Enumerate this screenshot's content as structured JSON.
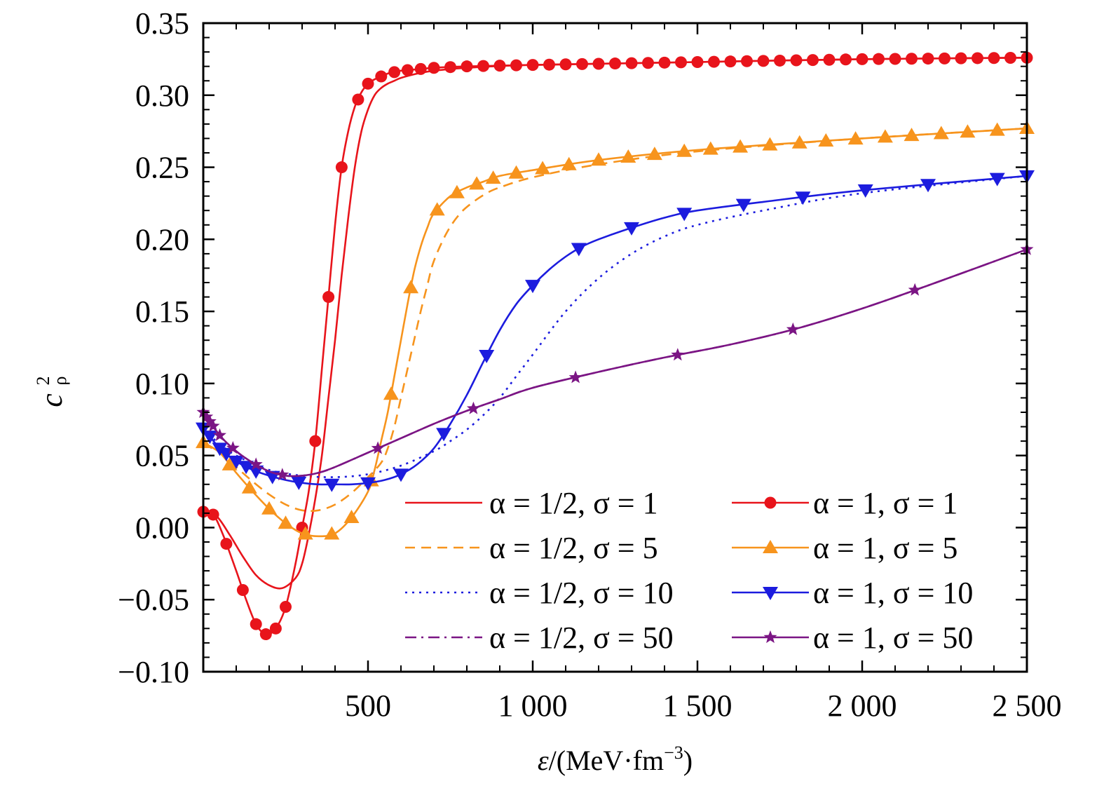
{
  "chart_data": {
    "type": "line",
    "title": "",
    "xlabel": {
      "prefix": "ε",
      "main": "/(MeV·fm",
      "sup": "−3",
      "suffix": ")"
    },
    "ylabel": {
      "main": "c",
      "sup": "2",
      "sub": "ρ"
    },
    "xlim": [
      0,
      2500
    ],
    "ylim": [
      -0.1,
      0.35
    ],
    "x_ticks": [
      {
        "value": 500,
        "label": "500"
      },
      {
        "value": 1000,
        "label": "1 000"
      },
      {
        "value": 1500,
        "label": "1 500"
      },
      {
        "value": 2000,
        "label": "2 000"
      },
      {
        "value": 2500,
        "label": "2 500"
      }
    ],
    "y_ticks": [
      {
        "value": -0.1,
        "label": "−0.10"
      },
      {
        "value": -0.05,
        "label": "−0.05"
      },
      {
        "value": 0.0,
        "label": "0.00"
      },
      {
        "value": 0.05,
        "label": "0.05"
      },
      {
        "value": 0.1,
        "label": "0.10"
      },
      {
        "value": 0.15,
        "label": "0.15"
      },
      {
        "value": 0.2,
        "label": "0.20"
      },
      {
        "value": 0.25,
        "label": "0.25"
      },
      {
        "value": 0.3,
        "label": "0.30"
      },
      {
        "value": 0.35,
        "label": "0.35"
      }
    ],
    "grid": false,
    "legend_position": "bottom-right",
    "series": [
      {
        "name": "α = 1/2, σ = 1",
        "color": "#e8141b",
        "dash": "solid",
        "marker": "none",
        "x": [
          0,
          40,
          80,
          120,
          160,
          200,
          240,
          280,
          300,
          320,
          340,
          360,
          380,
          400,
          420,
          440,
          460,
          480,
          500,
          520,
          540,
          560,
          580,
          600,
          650,
          700,
          800,
          1000,
          1500,
          2000,
          2500
        ],
        "y": [
          0.011,
          0.008,
          -0.005,
          -0.02,
          -0.033,
          -0.04,
          -0.042,
          -0.035,
          -0.025,
          -0.005,
          0.02,
          0.05,
          0.09,
          0.13,
          0.175,
          0.215,
          0.25,
          0.275,
          0.29,
          0.3,
          0.305,
          0.308,
          0.31,
          0.312,
          0.315,
          0.317,
          0.319,
          0.321,
          0.323,
          0.325,
          0.326
        ]
      },
      {
        "name": "α = 1/2, σ = 5",
        "color": "#f7941d",
        "dash": "dashed",
        "marker": "none",
        "x": [
          0,
          50,
          100,
          150,
          200,
          250,
          300,
          350,
          400,
          450,
          500,
          540,
          560,
          580,
          600,
          620,
          640,
          660,
          680,
          700,
          740,
          780,
          820,
          860,
          900,
          1000,
          1200,
          1500,
          2000,
          2500
        ],
        "y": [
          0.058,
          0.052,
          0.042,
          0.032,
          0.023,
          0.016,
          0.012,
          0.012,
          0.016,
          0.024,
          0.035,
          0.045,
          0.055,
          0.07,
          0.09,
          0.11,
          0.13,
          0.15,
          0.168,
          0.185,
          0.205,
          0.218,
          0.226,
          0.232,
          0.236,
          0.243,
          0.252,
          0.261,
          0.27,
          0.277
        ]
      },
      {
        "name": "α = 1/2, σ = 10",
        "color": "#1c1cde",
        "dash": "dotted",
        "marker": "none",
        "x": [
          0,
          50,
          100,
          200,
          300,
          400,
          500,
          600,
          700,
          750,
          800,
          850,
          900,
          950,
          1000,
          1100,
          1200,
          1300,
          1400,
          1500,
          1700,
          2000,
          2500
        ],
        "y": [
          0.068,
          0.058,
          0.05,
          0.04,
          0.036,
          0.035,
          0.037,
          0.043,
          0.053,
          0.06,
          0.068,
          0.078,
          0.09,
          0.105,
          0.12,
          0.15,
          0.173,
          0.19,
          0.202,
          0.21,
          0.22,
          0.232,
          0.244
        ]
      },
      {
        "name": "α = 1/2, σ = 50",
        "color": "#7b1584",
        "dash": "dashdot",
        "marker": "none",
        "x": [
          0,
          50,
          100,
          150,
          200,
          250,
          300,
          350,
          400,
          500,
          600,
          700,
          800,
          900,
          1000,
          1200,
          1400,
          1600,
          1800,
          2000,
          2200,
          2500
        ],
        "y": [
          0.08,
          0.064,
          0.053,
          0.045,
          0.039,
          0.036,
          0.036,
          0.038,
          0.042,
          0.052,
          0.062,
          0.072,
          0.081,
          0.089,
          0.097,
          0.108,
          0.118,
          0.127,
          0.138,
          0.152,
          0.168,
          0.193
        ]
      },
      {
        "name": "α = 1, σ = 1",
        "color": "#e8141b",
        "dash": "solid",
        "marker": "circle",
        "x": [
          0,
          30,
          60,
          100,
          130,
          160,
          190,
          220,
          250,
          280,
          300,
          320,
          340,
          360,
          380,
          400,
          420,
          440,
          460,
          480,
          500,
          520,
          540,
          560,
          580,
          600,
          650,
          700,
          800,
          1000,
          1500,
          2000,
          2500
        ],
        "y": [
          0.011,
          0.009,
          -0.005,
          -0.03,
          -0.05,
          -0.067,
          -0.074,
          -0.07,
          -0.055,
          -0.025,
          0.0,
          0.025,
          0.06,
          0.11,
          0.16,
          0.21,
          0.25,
          0.275,
          0.292,
          0.302,
          0.308,
          0.311,
          0.313,
          0.315,
          0.316,
          0.317,
          0.318,
          0.319,
          0.32,
          0.321,
          0.323,
          0.325,
          0.326
        ]
      },
      {
        "name": "α = 1, σ = 5",
        "color": "#f7941d",
        "dash": "solid",
        "marker": "triangle-up",
        "x": [
          0,
          50,
          100,
          150,
          200,
          250,
          300,
          350,
          400,
          450,
          500,
          520,
          540,
          560,
          580,
          600,
          620,
          640,
          660,
          680,
          700,
          750,
          800,
          850,
          900,
          1000,
          1200,
          1500,
          2000,
          2500
        ],
        "y": [
          0.059,
          0.052,
          0.038,
          0.025,
          0.013,
          0.003,
          -0.004,
          -0.006,
          -0.004,
          0.007,
          0.025,
          0.04,
          0.06,
          0.08,
          0.105,
          0.13,
          0.155,
          0.178,
          0.195,
          0.208,
          0.218,
          0.23,
          0.236,
          0.24,
          0.244,
          0.248,
          0.255,
          0.262,
          0.27,
          0.277
        ]
      },
      {
        "name": "α = 1, σ = 10",
        "color": "#1c1cde",
        "dash": "solid",
        "marker": "triangle-down",
        "x": [
          0,
          50,
          100,
          150,
          200,
          250,
          300,
          350,
          400,
          450,
          500,
          550,
          600,
          650,
          700,
          750,
          800,
          850,
          900,
          950,
          1000,
          1050,
          1100,
          1150,
          1200,
          1300,
          1400,
          1500,
          1700,
          2000,
          2500
        ],
        "y": [
          0.069,
          0.055,
          0.046,
          0.04,
          0.036,
          0.033,
          0.031,
          0.03,
          0.03,
          0.03,
          0.031,
          0.033,
          0.037,
          0.044,
          0.055,
          0.072,
          0.092,
          0.115,
          0.137,
          0.155,
          0.168,
          0.179,
          0.188,
          0.195,
          0.2,
          0.208,
          0.215,
          0.22,
          0.226,
          0.234,
          0.244
        ]
      },
      {
        "name": "α = 1, σ = 50",
        "color": "#7b1584",
        "dash": "solid",
        "marker": "star",
        "x": [
          0,
          50,
          100,
          150,
          200,
          250,
          300,
          350,
          400,
          500,
          600,
          700,
          800,
          900,
          1000,
          1200,
          1400,
          1600,
          1800,
          2000,
          2200,
          2500
        ],
        "y": [
          0.08,
          0.064,
          0.053,
          0.045,
          0.039,
          0.036,
          0.036,
          0.038,
          0.042,
          0.052,
          0.062,
          0.072,
          0.081,
          0.089,
          0.097,
          0.108,
          0.118,
          0.127,
          0.138,
          0.152,
          0.168,
          0.193
        ]
      }
    ]
  }
}
